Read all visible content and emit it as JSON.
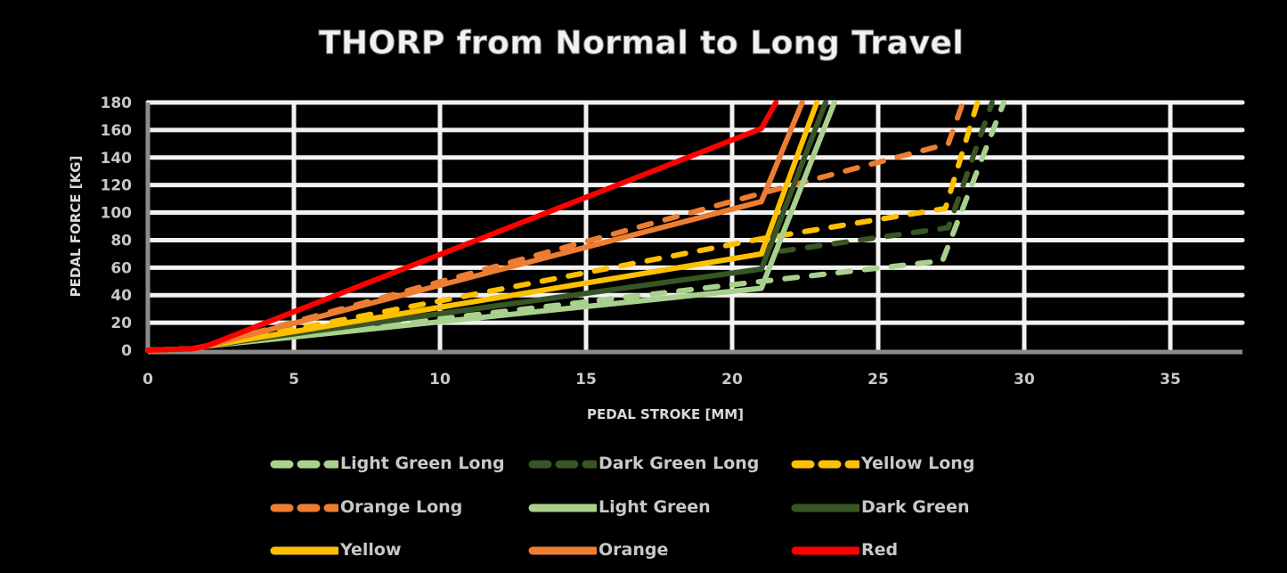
{
  "chart_data": {
    "type": "line",
    "title": "THORP from Normal to Long Travel",
    "xlabel": "PEDAL STROKE [MM]",
    "ylabel": "PEDAL FORCE [KG]",
    "xlim": [
      0,
      37
    ],
    "ylim": [
      0,
      180
    ],
    "xticks": [
      0,
      5,
      10,
      15,
      20,
      25,
      30,
      35
    ],
    "yticks": [
      0,
      20,
      40,
      60,
      80,
      100,
      120,
      140,
      160,
      180
    ],
    "grid": true,
    "legend_position": "bottom",
    "series": [
      {
        "name": "Light Green Long",
        "color": "#a9d18e",
        "dash": true,
        "points": [
          [
            0,
            0
          ],
          [
            1.5,
            1
          ],
          [
            2,
            3
          ],
          [
            21,
            50
          ],
          [
            27.2,
            65
          ],
          [
            29.3,
            180
          ]
        ]
      },
      {
        "name": "Dark Green Long",
        "color": "#375623",
        "dash": true,
        "points": [
          [
            0,
            0
          ],
          [
            1.5,
            1
          ],
          [
            2,
            3
          ],
          [
            21,
            70
          ],
          [
            27.4,
            89
          ],
          [
            28.9,
            180
          ]
        ]
      },
      {
        "name": "Yellow Long",
        "color": "#ffc000",
        "dash": true,
        "points": [
          [
            0,
            0
          ],
          [
            1.5,
            1
          ],
          [
            2,
            3
          ],
          [
            21,
            81
          ],
          [
            27.3,
            103
          ],
          [
            28.4,
            180
          ]
        ]
      },
      {
        "name": "Orange Long",
        "color": "#ed7d31",
        "dash": true,
        "points": [
          [
            0,
            0
          ],
          [
            1.5,
            1
          ],
          [
            2,
            3
          ],
          [
            21,
            114
          ],
          [
            27.4,
            150
          ],
          [
            27.9,
            180
          ]
        ]
      },
      {
        "name": "Light Green",
        "color": "#a9d18e",
        "dash": false,
        "points": [
          [
            0,
            0
          ],
          [
            1.5,
            1
          ],
          [
            2,
            3
          ],
          [
            21,
            45
          ],
          [
            23.5,
            180
          ]
        ]
      },
      {
        "name": "Dark Green",
        "color": "#375623",
        "dash": false,
        "points": [
          [
            0,
            0
          ],
          [
            1.5,
            1
          ],
          [
            2,
            3
          ],
          [
            21,
            59
          ],
          [
            23.2,
            180
          ]
        ]
      },
      {
        "name": "Yellow",
        "color": "#ffc000",
        "dash": false,
        "points": [
          [
            0,
            0
          ],
          [
            1.5,
            1
          ],
          [
            2,
            3
          ],
          [
            21,
            70
          ],
          [
            22.9,
            180
          ]
        ]
      },
      {
        "name": "Orange",
        "color": "#ed7d31",
        "dash": false,
        "points": [
          [
            0,
            0
          ],
          [
            1.5,
            1
          ],
          [
            2,
            3
          ],
          [
            21,
            108
          ],
          [
            22.4,
            180
          ]
        ]
      },
      {
        "name": "Red",
        "color": "#ff0000",
        "dash": false,
        "points": [
          [
            0,
            0
          ],
          [
            1.5,
            1
          ],
          [
            2,
            3
          ],
          [
            21,
            161
          ],
          [
            21.5,
            180
          ]
        ]
      }
    ]
  }
}
